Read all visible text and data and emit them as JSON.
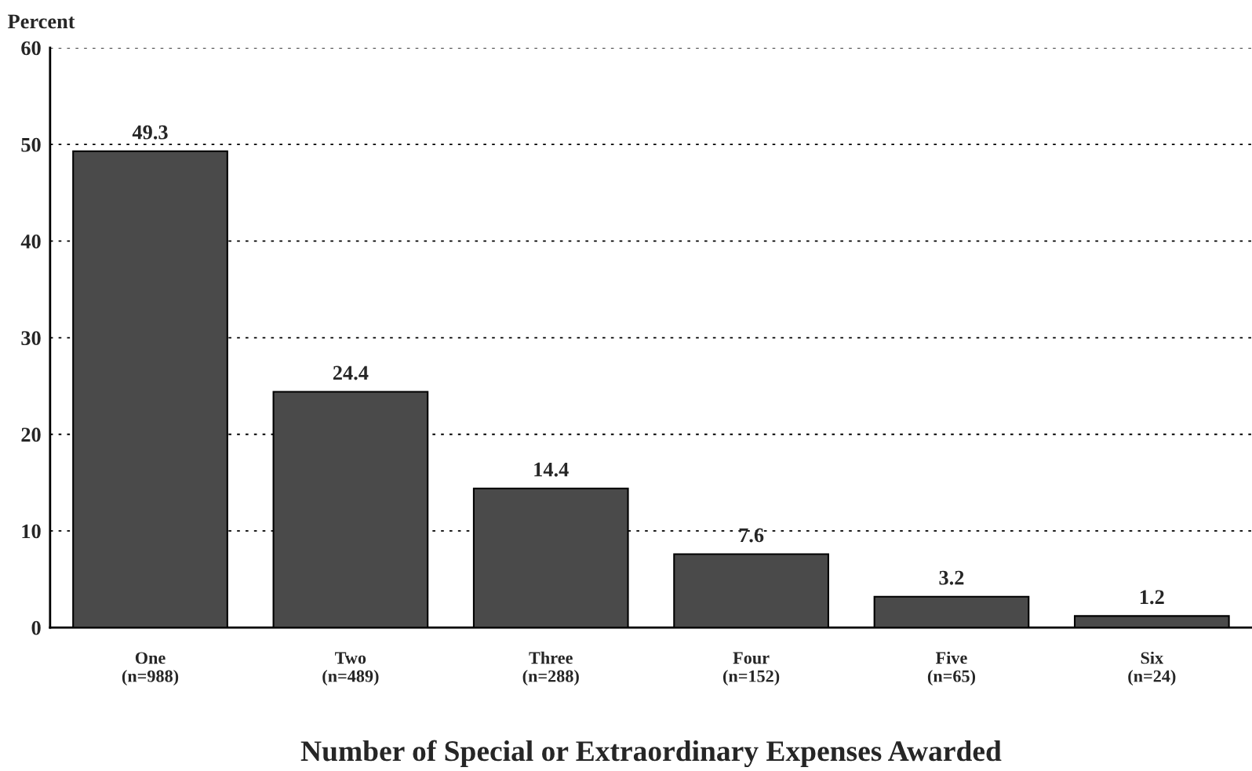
{
  "chart_data": {
    "type": "bar",
    "xlabel": "Number of Special or Extraordinary Expenses Awarded",
    "ylabel": "Percent",
    "categories": [
      "One\n(n=988)",
      "Two\n(n=489)",
      "Three\n(n=288)",
      "Four\n(n=152)",
      "Five\n(n=65)",
      "Six\n(n=24)"
    ],
    "values": [
      49.3,
      24.4,
      14.4,
      7.6,
      3.2,
      1.2
    ],
    "color": "#4a4a4a",
    "ylim": [
      0,
      60
    ],
    "yticks": [
      0,
      10,
      20,
      30,
      40,
      50,
      60
    ],
    "grid": "y",
    "data_labels": true
  }
}
